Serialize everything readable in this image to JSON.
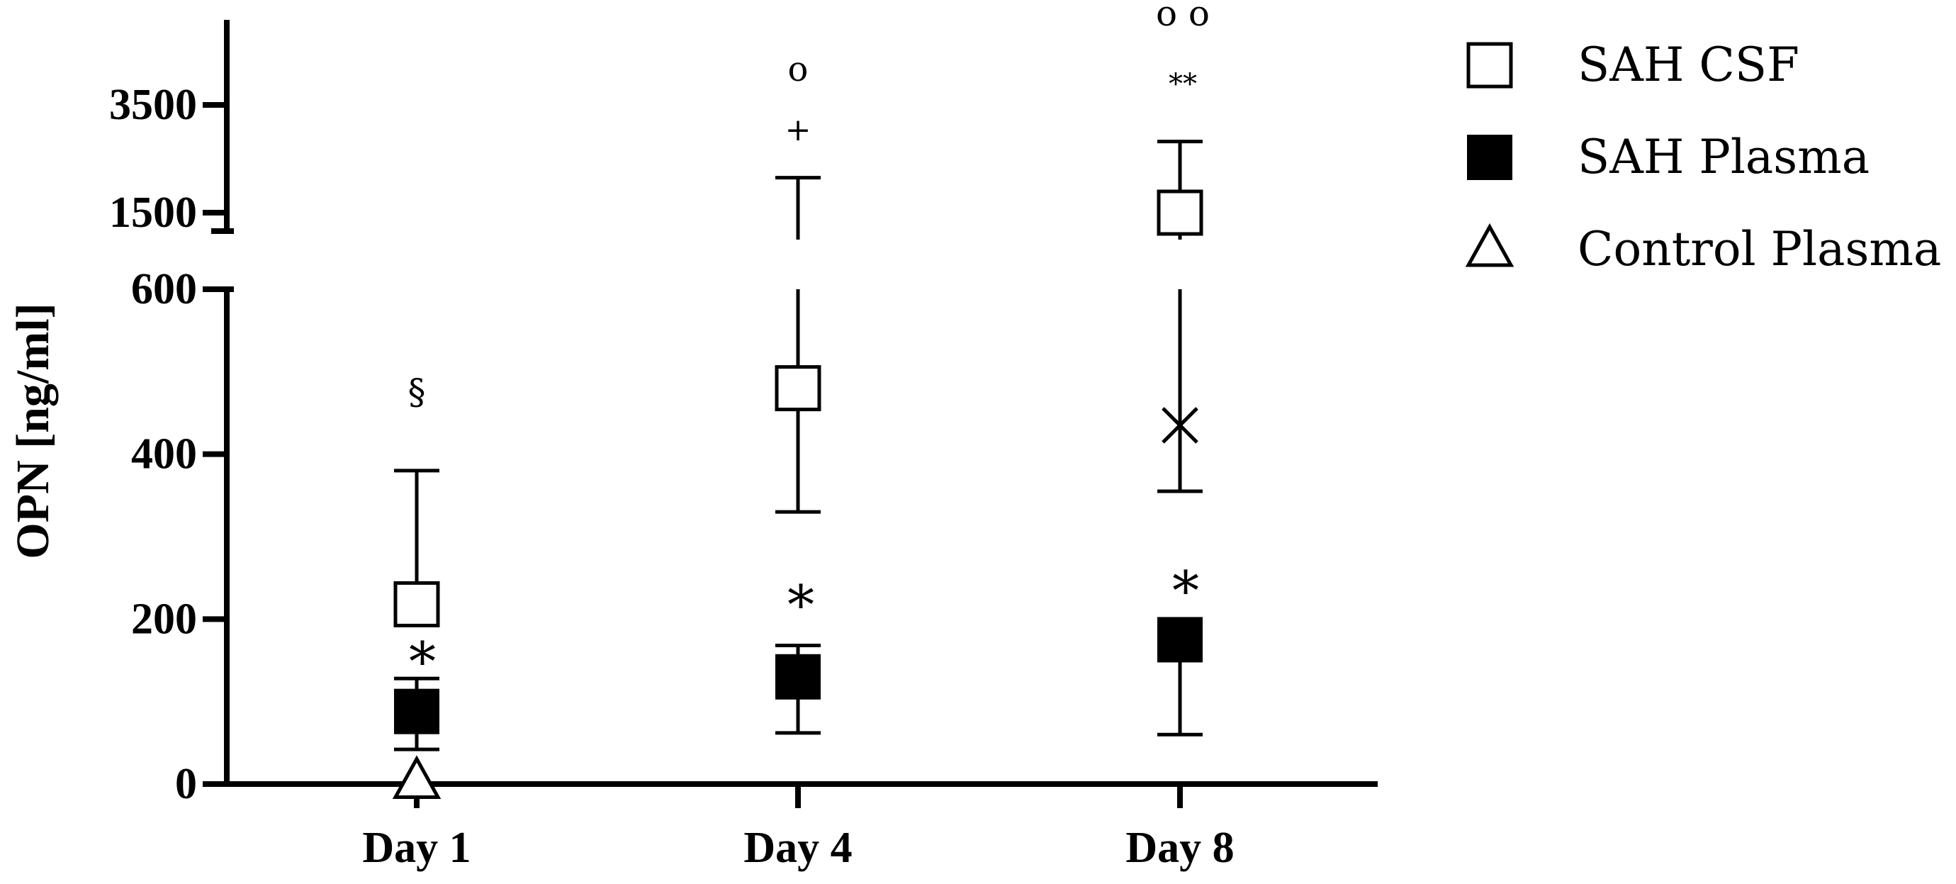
{
  "chart_data": {
    "type": "scatter",
    "ylabel": "OPN [ng/ml]",
    "categories": [
      "Day 1",
      "Day 4",
      "Day 8"
    ],
    "y_axis": {
      "lower_segment": {
        "range": [
          0,
          600
        ],
        "ticks": [
          "0",
          "200",
          "400",
          "600"
        ]
      },
      "upper_segment": {
        "range": [
          1000,
          4500
        ],
        "ticks": [
          "1500",
          "3500"
        ]
      },
      "axis_break": true
    },
    "series": [
      {
        "name": "SAH CSF",
        "marker": "square-open",
        "points": [
          {
            "category": "Day 1",
            "mean": 218,
            "err_high": 380,
            "err_low": 200
          },
          {
            "category": "Day 4",
            "mean": 480,
            "err_high": 2150,
            "err_low": 330
          },
          {
            "category": "Day 8",
            "mean": 1500,
            "err_high": 2820,
            "err_low": 355
          }
        ]
      },
      {
        "name": "SAH Plasma",
        "marker": "square-filled",
        "points": [
          {
            "category": "Day 1",
            "mean": 88,
            "err_high": 128,
            "err_low": 42
          },
          {
            "category": "Day 4",
            "mean": 130,
            "err_high": 168,
            "err_low": 62
          },
          {
            "category": "Day 8",
            "mean": 175,
            "err_high": 175,
            "err_low": 60
          }
        ]
      },
      {
        "name": "Control Plasma",
        "marker": "triangle-open",
        "points": [
          {
            "category": "Day 1",
            "mean": 3
          }
        ]
      }
    ],
    "extra_marks": [
      {
        "category": "Day 8",
        "marker": "x",
        "value": 435
      }
    ],
    "annotations": [
      {
        "category": "Day 1",
        "text": "§"
      },
      {
        "category": "Day 1",
        "text": "*"
      },
      {
        "category": "Day 4",
        "text": "*"
      },
      {
        "category": "Day 4",
        "text": "+"
      },
      {
        "category": "Day 4",
        "text": "o"
      },
      {
        "category": "Day 8",
        "text": "*"
      },
      {
        "category": "Day 8",
        "text": "**"
      },
      {
        "category": "Day 8",
        "text": "o o"
      }
    ],
    "legend": {
      "placement": "right",
      "entries": [
        {
          "label": "SAH CSF",
          "marker": "square-open"
        },
        {
          "label": "SAH Plasma",
          "marker": "square-filled"
        },
        {
          "label": "Control Plasma",
          "marker": "triangle-open"
        }
      ]
    },
    "colors": {
      "ink": "#000000",
      "background": "#ffffff"
    }
  }
}
